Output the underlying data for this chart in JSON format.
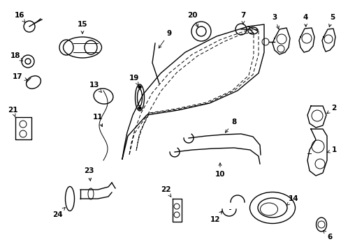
{
  "bg_color": "#ffffff",
  "lc": "#000000",
  "fig_w": 4.89,
  "fig_h": 3.6,
  "dpi": 100
}
